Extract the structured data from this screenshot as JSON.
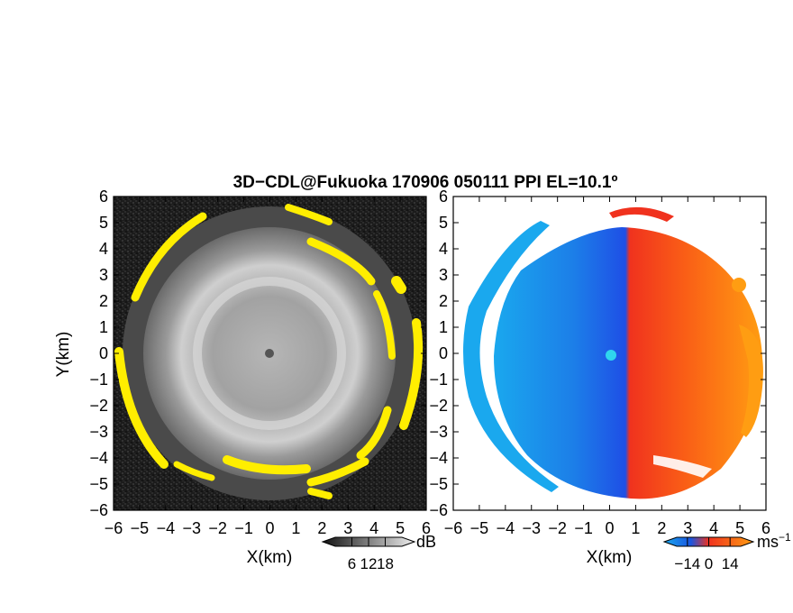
{
  "title": "3D−CDL@Fukuoka 170906 050111 PPI EL=10.1º",
  "colors": {
    "background": "#ffffff",
    "reflect_dark": "#1c1c1c",
    "reflect_mid": "#8c8c8c",
    "reflect_light": "#c8c8c8",
    "echo_yellow": "#ffee00",
    "vel_far_neg": "#1aa8ee",
    "vel_neg": "#1f4fe6",
    "vel_zero": "#2fd6ee",
    "vel_pos": "#f0321e",
    "vel_far_pos": "#ff9d12"
  },
  "chart_data": [
    {
      "type": "heatmap",
      "name": "reflectivity",
      "xlabel": "X(km)",
      "ylabel": "Y(km)",
      "xlim": [
        -6,
        6
      ],
      "ylim": [
        -6,
        6
      ],
      "xticks": [
        "−6",
        "−5",
        "−4",
        "−3",
        "−2",
        "−1",
        "0",
        "1",
        "2",
        "3",
        "4",
        "5",
        "6"
      ],
      "yticks": [
        "6",
        "5",
        "4",
        "3",
        "2",
        "1",
        "0",
        "−1",
        "−2",
        "−3",
        "−4",
        "−5",
        "−6"
      ],
      "colorbar": {
        "unit": "dB",
        "ticks": [
          "6",
          "12",
          "18"
        ],
        "range": [
          0,
          24
        ]
      }
    },
    {
      "type": "heatmap",
      "name": "doppler_velocity",
      "xlabel": "X(km)",
      "xlim": [
        -6,
        6
      ],
      "ylim": [
        -6,
        6
      ],
      "xticks": [
        "−6",
        "−5",
        "−4",
        "−3",
        "−2",
        "−1",
        "0",
        "1",
        "2",
        "3",
        "4",
        "5",
        "6"
      ],
      "yticks": [
        "6",
        "5",
        "4",
        "3",
        "2",
        "1",
        "0",
        "−1",
        "−2",
        "−3",
        "−4",
        "−5",
        "−6"
      ],
      "colorbar": {
        "unit": "ms",
        "unit_exp": "−1",
        "ticks": [
          "−14",
          "0",
          "14"
        ],
        "range": [
          -21,
          21
        ]
      }
    }
  ]
}
